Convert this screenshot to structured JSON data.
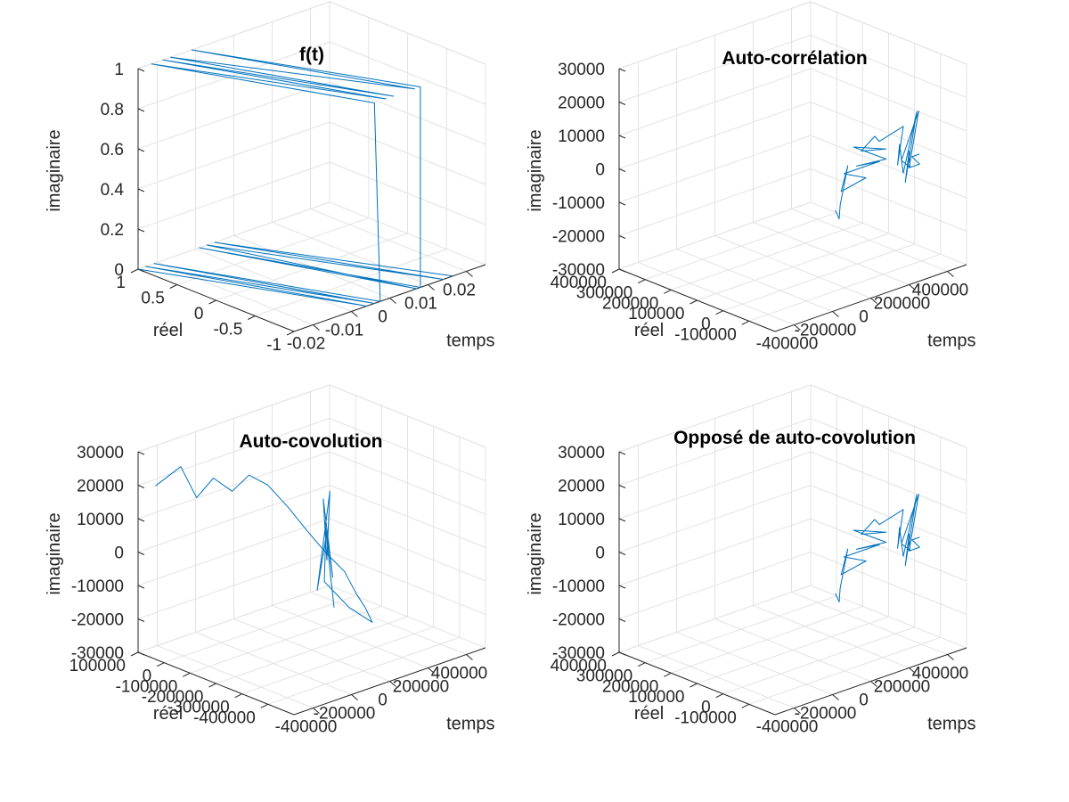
{
  "chart_data": [
    {
      "type": "line3d",
      "title": "f(t)",
      "xlabel": "temps",
      "ylabel": "réel",
      "zlabel": "imaginaire",
      "xlim": [
        -0.025,
        0.025
      ],
      "ylim": [
        -1,
        1
      ],
      "zlim": [
        0,
        1
      ],
      "xticks": [
        -0.02,
        -0.01,
        0,
        0.01,
        0.02
      ],
      "xticklabels": [
        "-0.02",
        "-0.01",
        "0",
        "0.01",
        "0.02"
      ],
      "yticks": [
        -1,
        -0.5,
        0,
        0.5,
        1
      ],
      "yticklabels": [
        "-1",
        "-0.5",
        "0",
        "0.5",
        "1"
      ],
      "zticks": [
        0,
        0.2,
        0.4,
        0.6,
        0.8,
        1
      ],
      "zticklabels": [
        "0",
        "0.2",
        "0.4",
        "0.6",
        "0.8",
        "1"
      ],
      "grid": true,
      "series": [
        {
          "points": [
            [
              -0.025,
              1.0,
              0
            ],
            [
              -0.006,
              -1.0,
              0
            ],
            [
              -0.023,
              1.0,
              0
            ],
            [
              -0.004,
              -1.0,
              0
            ],
            [
              -0.0208,
              1.0,
              0
            ],
            [
              -0.0025,
              -1.0,
              0
            ],
            [
              -0.004,
              -1.0,
              1
            ],
            [
              -0.0215,
              1.0,
              1
            ],
            [
              -0.001,
              -1.0,
              1
            ],
            [
              -0.0185,
              1.0,
              1
            ],
            [
              0.001,
              -1.0,
              1
            ],
            [
              -0.0165,
              1.0,
              1
            ],
            [
              0.0065,
              -1.0,
              1
            ],
            [
              -0.011,
              1.0,
              1
            ],
            [
              0.008,
              -1.0,
              1
            ],
            [
              0.008,
              -1.0,
              0
            ],
            [
              -0.009,
              1.0,
              0
            ],
            [
              0.007,
              -1.0,
              0
            ],
            [
              -0.007,
              1.0,
              0
            ],
            [
              0.014,
              -1.0,
              0
            ],
            [
              -0.005,
              1.0,
              0
            ],
            [
              0.0165,
              -1.0,
              0
            ]
          ]
        }
      ]
    },
    {
      "type": "line3d",
      "title": "Auto-corrélation",
      "xlabel": "temps",
      "ylabel": "réel",
      "zlabel": "imaginaire",
      "xlim": [
        -500000,
        500000
      ],
      "ylim": [
        -200000,
        400000
      ],
      "zlim": [
        -30000,
        30000
      ],
      "xticks": [
        -400000,
        -200000,
        0,
        200000,
        400000
      ],
      "xticklabels": [
        "-400000",
        "-200000",
        "0",
        "200000",
        "400000"
      ],
      "yticks": [
        -100000,
        0,
        100000,
        200000,
        300000,
        400000
      ],
      "yticklabels": [
        "-100000",
        "0",
        "100000",
        "200000",
        "300000",
        "400000"
      ],
      "zticks": [
        -30000,
        -20000,
        -10000,
        0,
        10000,
        20000,
        30000
      ],
      "zticklabels": [
        "-30000",
        "-20000",
        "-10000",
        "0",
        "10000",
        "20000",
        "30000"
      ],
      "grid": true,
      "series": [
        {
          "points": [
            [
              -185000,
              -200000,
              0
            ],
            [
              -165000,
              -200000,
              -3000
            ],
            [
              -160000,
              -200000,
              1000
            ],
            [
              -120000,
              -200000,
              12000
            ],
            [
              -155000,
              -200000,
              5000
            ],
            [
              -25000,
              -200000,
              6500
            ],
            [
              -140000,
              -200000,
              10000
            ],
            [
              -5000,
              -200000,
              10000
            ],
            [
              -105000,
              -200000,
              10000
            ],
            [
              45000,
              -200000,
              10000
            ],
            [
              -75000,
              -200000,
              11000
            ],
            [
              80000,
              -200000,
              10000
            ],
            [
              -90000,
              -200000,
              17000
            ],
            [
              80000,
              -200000,
              13000
            ],
            [
              -50000,
              -200000,
              15000
            ],
            [
              20000,
              -200000,
              18000
            ],
            [
              45000,
              -200000,
              16000
            ],
            [
              170000,
              -200000,
              18000
            ],
            [
              140000,
              -200000,
              7000
            ],
            [
              150000,
              -200000,
              13000
            ],
            [
              170000,
              -200000,
              4000
            ],
            [
              240000,
              -200000,
              21000
            ],
            [
              180000,
              -200000,
              1000
            ],
            [
              200000,
              -200000,
              10000
            ],
            [
              205000,
              -200000,
              5000
            ],
            [
              160000,
              -200000,
              8000
            ],
            [
              250000,
              -200000,
              21000
            ],
            [
              200000,
              -200000,
              5000
            ],
            [
              255000,
              -200000,
              5000
            ],
            [
              215000,
              -200000,
              8000
            ],
            [
              255000,
              -200000,
              8000
            ]
          ]
        }
      ]
    },
    {
      "type": "line3d",
      "title": "Auto-covolution",
      "xlabel": "temps",
      "ylabel": "réel",
      "zlabel": "imaginaire",
      "xlim": [
        -500000,
        500000
      ],
      "ylim": [
        -500000,
        100000
      ],
      "zlim": [
        -30000,
        30000
      ],
      "xticks": [
        -400000,
        -200000,
        0,
        200000,
        400000
      ],
      "xticklabels": [
        "-400000",
        "-200000",
        "0",
        "200000",
        "400000"
      ],
      "yticks": [
        -400000,
        -300000,
        -200000,
        -100000,
        0,
        100000
      ],
      "yticklabels": [
        "-400000",
        "-300000",
        "-200000",
        "-100000",
        "0",
        "100000"
      ],
      "zticks": [
        -30000,
        -20000,
        -10000,
        0,
        10000,
        20000,
        30000
      ],
      "zticklabels": [
        "-30000",
        "-20000",
        "-10000",
        "0",
        "10000",
        "20000",
        "30000"
      ],
      "grid": true,
      "series": [
        {
          "points": [
            [
              -410000,
              100000,
              18000
            ],
            [
              -345000,
              50000,
              24000
            ],
            [
              -330000,
              0,
              16000
            ],
            [
              -310000,
              -50000,
              23000
            ],
            [
              -280000,
              -100000,
              20000
            ],
            [
              -260000,
              -150000,
              26000
            ],
            [
              -230000,
              -200000,
              24000
            ],
            [
              -190000,
              -250000,
              18000
            ],
            [
              -160000,
              -300000,
              12000
            ],
            [
              -100000,
              -330000,
              5000
            ],
            [
              -60000,
              -370000,
              0
            ],
            [
              -40000,
              -400000,
              -6000
            ],
            [
              -20000,
              -420000,
              -10000
            ],
            [
              -10000,
              -440000,
              -14000
            ],
            [
              -20000,
              -360000,
              -12000
            ],
            [
              -70000,
              -300000,
              -5000
            ],
            [
              -10000,
              -260000,
              5000
            ],
            [
              -80000,
              -280000,
              -8000
            ],
            [
              40000,
              -240000,
              18000
            ],
            [
              -30000,
              -280000,
              0
            ],
            [
              60000,
              -200000,
              14000
            ],
            [
              -40000,
              -310000,
              -4000
            ],
            [
              0,
              -250000,
              10000
            ],
            [
              -60000,
              -330000,
              -12000
            ]
          ]
        }
      ]
    },
    {
      "type": "line3d",
      "title": "Opposé de auto-covolution",
      "xlabel": "temps",
      "ylabel": "réel",
      "zlabel": "imaginaire",
      "xlim": [
        -500000,
        500000
      ],
      "ylim": [
        -200000,
        400000
      ],
      "zlim": [
        -30000,
        30000
      ],
      "xticks": [
        -400000,
        -200000,
        0,
        200000,
        400000
      ],
      "xticklabels": [
        "-400000",
        "-200000",
        "0",
        "200000",
        "400000"
      ],
      "yticks": [
        -100000,
        0,
        100000,
        200000,
        300000,
        400000
      ],
      "yticklabels": [
        "-100000",
        "0",
        "100000",
        "200000",
        "300000",
        "400000"
      ],
      "zticks": [
        -30000,
        -20000,
        -10000,
        0,
        10000,
        20000,
        30000
      ],
      "zticklabels": [
        "-30000",
        "-20000",
        "-10000",
        "0",
        "10000",
        "20000",
        "30000"
      ],
      "grid": true,
      "series": [
        {
          "points": [
            [
              -185000,
              -200000,
              0
            ],
            [
              -165000,
              -200000,
              -3000
            ],
            [
              -160000,
              -200000,
              1000
            ],
            [
              -120000,
              -200000,
              12000
            ],
            [
              -155000,
              -200000,
              5000
            ],
            [
              -25000,
              -200000,
              6500
            ],
            [
              -140000,
              -200000,
              10000
            ],
            [
              -5000,
              -200000,
              10000
            ],
            [
              -105000,
              -200000,
              10000
            ],
            [
              45000,
              -200000,
              10000
            ],
            [
              -75000,
              -200000,
              11000
            ],
            [
              80000,
              -200000,
              10000
            ],
            [
              -90000,
              -200000,
              17000
            ],
            [
              80000,
              -200000,
              13000
            ],
            [
              -50000,
              -200000,
              15000
            ],
            [
              20000,
              -200000,
              18000
            ],
            [
              45000,
              -200000,
              16000
            ],
            [
              170000,
              -200000,
              18000
            ],
            [
              140000,
              -200000,
              7000
            ],
            [
              150000,
              -200000,
              13000
            ],
            [
              170000,
              -200000,
              4000
            ],
            [
              240000,
              -200000,
              21000
            ],
            [
              180000,
              -200000,
              1000
            ],
            [
              200000,
              -200000,
              10000
            ],
            [
              205000,
              -200000,
              5000
            ],
            [
              160000,
              -200000,
              8000
            ],
            [
              250000,
              -200000,
              21000
            ],
            [
              200000,
              -200000,
              5000
            ],
            [
              255000,
              -200000,
              5000
            ],
            [
              215000,
              -200000,
              8000
            ],
            [
              255000,
              -200000,
              8000
            ]
          ]
        }
      ]
    }
  ]
}
